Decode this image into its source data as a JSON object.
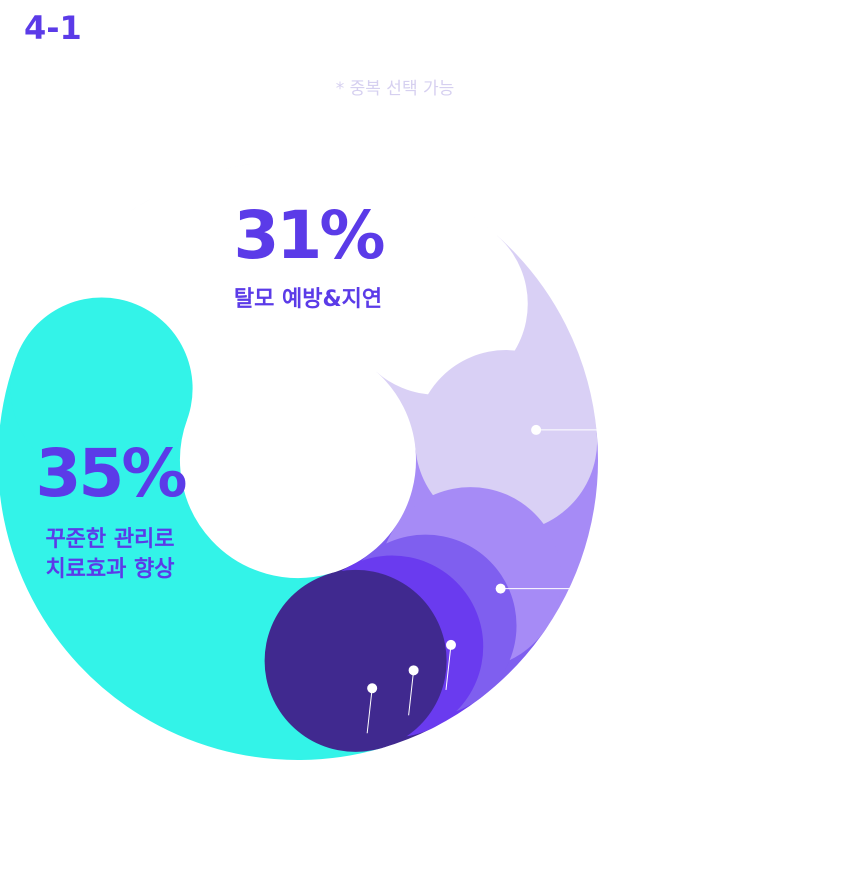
{
  "chart_data": {
    "type": "donut",
    "title": "4-1",
    "subtitle": "* 중복 선택 가능",
    "categories": [
      "탈모 예방&지연",
      null,
      null,
      null,
      null,
      null,
      [
        "꾸준한 관리로",
        "치료효과 향상"
      ]
    ],
    "values": [
      31,
      12,
      11,
      5,
      3,
      3,
      35
    ],
    "value_labels": [
      "31%",
      null,
      null,
      null,
      null,
      null,
      "35%"
    ],
    "colors": [
      "#ffffff",
      "#d9d0f5",
      "#a68bf6",
      "#7f5fef",
      "#6a3bef",
      "#40298f",
      "#33f3e8"
    ]
  }
}
